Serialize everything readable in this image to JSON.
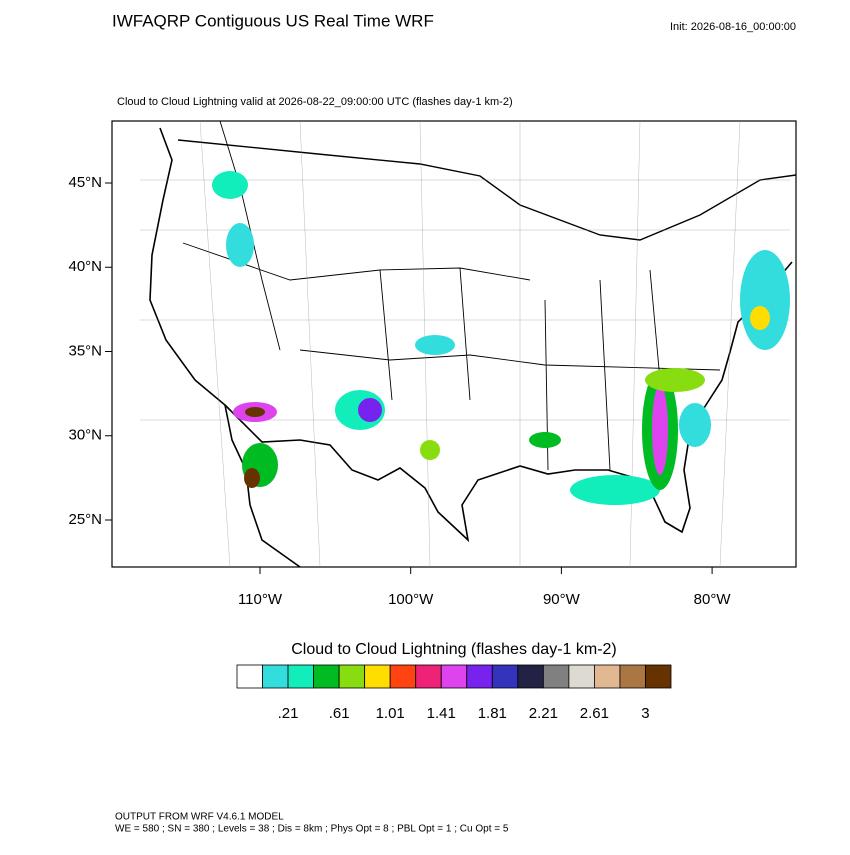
{
  "header": {
    "title": "IWFAQRP Contiguous US Real Time WRF",
    "init": "Init: 2026-08-16_00:00:00",
    "subtitle": "Cloud to Cloud Lightning valid at 2026-08-22_09:00:00 UTC   (flashes day-1 km-2)"
  },
  "map": {
    "lat_ticks": [
      {
        "value": 45,
        "label": "45°N"
      },
      {
        "value": 40,
        "label": "40°N"
      },
      {
        "value": 35,
        "label": "35°N"
      },
      {
        "value": 30,
        "label": "30°N"
      },
      {
        "value": 25,
        "label": "25°N"
      }
    ],
    "lon_ticks": [
      {
        "value": -110,
        "label": "110°W"
      },
      {
        "value": -100,
        "label": "100°W"
      },
      {
        "value": -90,
        "label": "90°W"
      },
      {
        "value": -80,
        "label": "80°W"
      }
    ]
  },
  "colorbar": {
    "title": "Cloud to Cloud Lightning  (flashes day-1 km-2)",
    "colors": [
      "#ffffff",
      "#33dddd",
      "#11eebb",
      "#00bb22",
      "#88dd11",
      "#ffdd00",
      "#ff4411",
      "#ee2277",
      "#dd44ee",
      "#7722ee",
      "#3333bb",
      "#222244",
      "#808080",
      "#dddad2",
      "#e2b893",
      "#aa7744",
      "#663300"
    ],
    "labels": [
      ".21",
      ".61",
      "1.01",
      "1.41",
      "1.81",
      "2.21",
      "2.61",
      "3"
    ]
  },
  "footer": {
    "line1": "OUTPUT FROM WRF V4.6.1 MODEL",
    "line2": "WE = 580 ; SN = 380 ; Levels = 38 ; Dis = 8km ; Phys Opt = 8 ; PBL Opt = 1 ; Cu Opt = 5"
  }
}
